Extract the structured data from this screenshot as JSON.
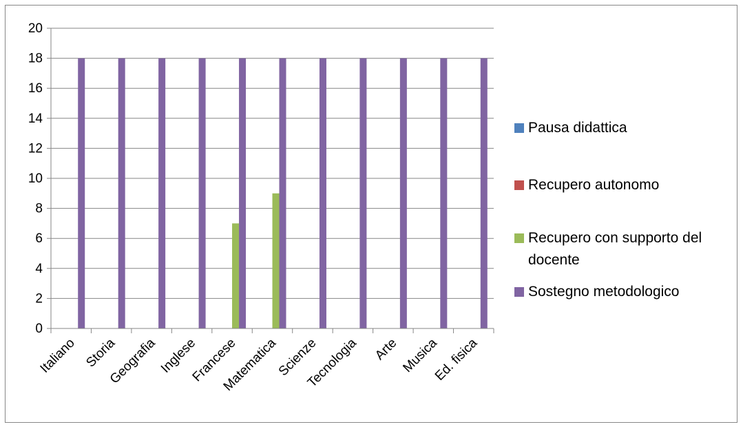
{
  "chart_data": {
    "type": "bar",
    "categories": [
      "Italiano",
      "Storia",
      "Geografia",
      "Inglese",
      "Francese",
      "Matematica",
      "Scienze",
      "Tecnologia",
      "Arte",
      "Musica",
      "Ed. fisica"
    ],
    "series": [
      {
        "name": "Pausa didattica",
        "color": "#4F81BD",
        "values": [
          0,
          0,
          0,
          0,
          0,
          0,
          0,
          0,
          0,
          0,
          0
        ]
      },
      {
        "name": "Recupero autonomo",
        "color": "#C0504D",
        "values": [
          0,
          0,
          0,
          0,
          0,
          0,
          0,
          0,
          0,
          0,
          0
        ]
      },
      {
        "name": "Recupero con supporto del docente",
        "color": "#9BBB59",
        "values": [
          0,
          0,
          0,
          0,
          7,
          9,
          0,
          0,
          0,
          0,
          0
        ]
      },
      {
        "name": "Sostegno metodologico",
        "color": "#8064A2",
        "values": [
          18,
          18,
          18,
          18,
          18,
          18,
          18,
          18,
          18,
          18,
          18
        ]
      }
    ],
    "yticks": [
      "0",
      "2",
      "4",
      "6",
      "8",
      "10",
      "12",
      "14",
      "16",
      "18",
      "20"
    ],
    "ylim": [
      0,
      20
    ],
    "grid": true,
    "legend_position": "right",
    "gridline_color": "#868686"
  }
}
